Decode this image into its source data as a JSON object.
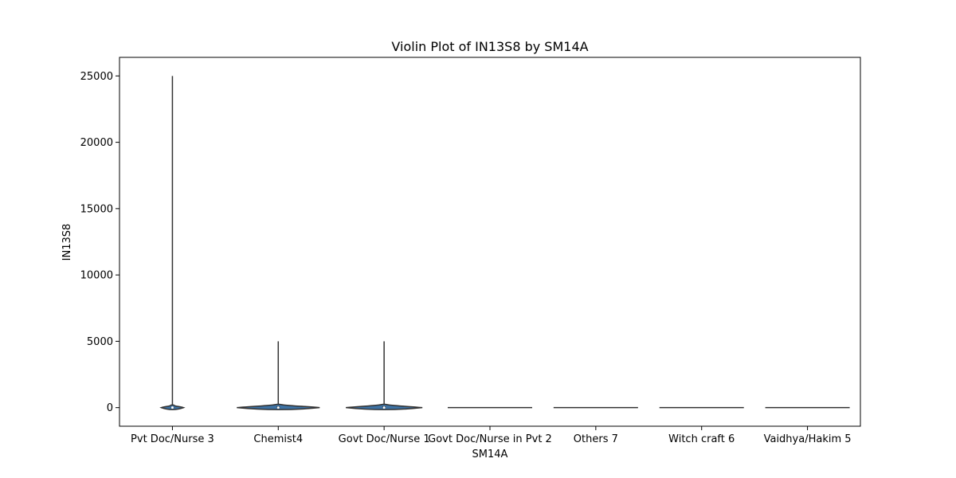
{
  "chart_data": {
    "type": "violin",
    "title": "Violin Plot of IN13S8 by SM14A",
    "xlabel": "SM14A",
    "ylabel": "IN13S8",
    "ylim": [
      -1400,
      26400
    ],
    "yticks": [
      0,
      5000,
      10000,
      15000,
      20000,
      25000
    ],
    "grid": false,
    "legend": "none",
    "fill_color": "#3d72a4",
    "line_color": "#333333",
    "categories": [
      "Pvt Doc/Nurse 3",
      "Chemist4",
      "Govt Doc/Nurse 1",
      "Govt Doc/Nurse in Pvt 2",
      "Others 7",
      "Witch craft 6",
      "Vaidhya/Hakim 5"
    ],
    "violins": [
      {
        "category": "Pvt Doc/Nurse 3",
        "min": 0,
        "max": 25000,
        "median": 0,
        "q1": 0,
        "q3": 50,
        "body_bottom": -150,
        "body_top": 200
      },
      {
        "category": "Chemist4",
        "min": 0,
        "max": 5000,
        "median": 0,
        "q1": 0,
        "q3": 100,
        "body_bottom": -150,
        "body_top": 250
      },
      {
        "category": "Govt Doc/Nurse 1",
        "min": 0,
        "max": 5000,
        "median": 0,
        "q1": 0,
        "q3": 100,
        "body_bottom": -150,
        "body_top": 250
      },
      {
        "category": "Govt Doc/Nurse in Pvt 2",
        "min": 0,
        "max": 0,
        "median": 0,
        "q1": 0,
        "q3": 0,
        "body_bottom": 0,
        "body_top": 0
      },
      {
        "category": "Others 7",
        "min": 0,
        "max": 0,
        "median": 0,
        "q1": 0,
        "q3": 0,
        "body_bottom": 0,
        "body_top": 0
      },
      {
        "category": "Witch craft 6",
        "min": 0,
        "max": 0,
        "median": 0,
        "q1": 0,
        "q3": 0,
        "body_bottom": 0,
        "body_top": 0
      },
      {
        "category": "Vaidhya/Hakim 5",
        "min": 0,
        "max": 0,
        "median": 0,
        "q1": 0,
        "q3": 0,
        "body_bottom": 0,
        "body_top": 0
      }
    ]
  }
}
